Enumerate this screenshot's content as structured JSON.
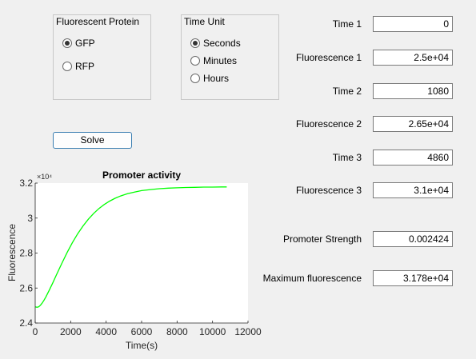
{
  "fluor_panel": {
    "title": "Fluorescent Protein",
    "options": [
      {
        "label": "GFP",
        "selected": true
      },
      {
        "label": "RFP",
        "selected": false
      }
    ]
  },
  "time_panel": {
    "title": "Time Unit",
    "options": [
      {
        "label": "Seconds",
        "selected": true
      },
      {
        "label": "Minutes",
        "selected": false
      },
      {
        "label": "Hours",
        "selected": false
      }
    ]
  },
  "solve_label": "Solve",
  "fields": [
    {
      "label": "Time 1",
      "value": "0"
    },
    {
      "label": "Fluorescence 1",
      "value": "2.5e+04"
    },
    {
      "label": "Time 2",
      "value": "1080"
    },
    {
      "label": "Fluorescence 2",
      "value": "2.65e+04"
    },
    {
      "label": "Time 3",
      "value": "4860"
    },
    {
      "label": "Fluorescence 3",
      "value": "3.1e+04"
    },
    {
      "label": "Promoter Strength",
      "value": "0.002424"
    },
    {
      "label": "Maximum fluorescence",
      "value": "3.178e+04"
    }
  ],
  "colors": {
    "curve": "#00ff00",
    "button_border": "#3c7fb1"
  },
  "chart_data": {
    "type": "line",
    "title": "Promoter activity",
    "xlabel": "Time(s)",
    "ylabel": "Fluorescence",
    "y_exponent": "×10⁴",
    "xlim": [
      0,
      12000
    ],
    "ylim": [
      2.4,
      3.2
    ],
    "x_ticks": [
      "0",
      "2000",
      "4000",
      "6000",
      "8000",
      "10000",
      "12000"
    ],
    "y_ticks": [
      "2.4",
      "2.6",
      "2.8",
      "3",
      "3.2"
    ],
    "grid": false,
    "series": [
      {
        "x": [
          0,
          100,
          200,
          300,
          400,
          500,
          600,
          800,
          1000,
          1200,
          1500,
          1800,
          2100,
          2400,
          2700,
          3000,
          3300,
          3600,
          3900,
          4200,
          4500,
          4800,
          5200,
          5600,
          6000,
          6500,
          7000,
          7500,
          8000,
          8500,
          9000,
          9500,
          10000,
          10500,
          10800
        ],
        "y": [
          2.493,
          2.49,
          2.493,
          2.502,
          2.515,
          2.531,
          2.549,
          2.589,
          2.632,
          2.676,
          2.741,
          2.803,
          2.86,
          2.911,
          2.955,
          2.994,
          3.027,
          3.055,
          3.078,
          3.097,
          3.113,
          3.126,
          3.139,
          3.149,
          3.157,
          3.163,
          3.168,
          3.171,
          3.173,
          3.175,
          3.176,
          3.177,
          3.177,
          3.178,
          3.178
        ]
      }
    ]
  }
}
